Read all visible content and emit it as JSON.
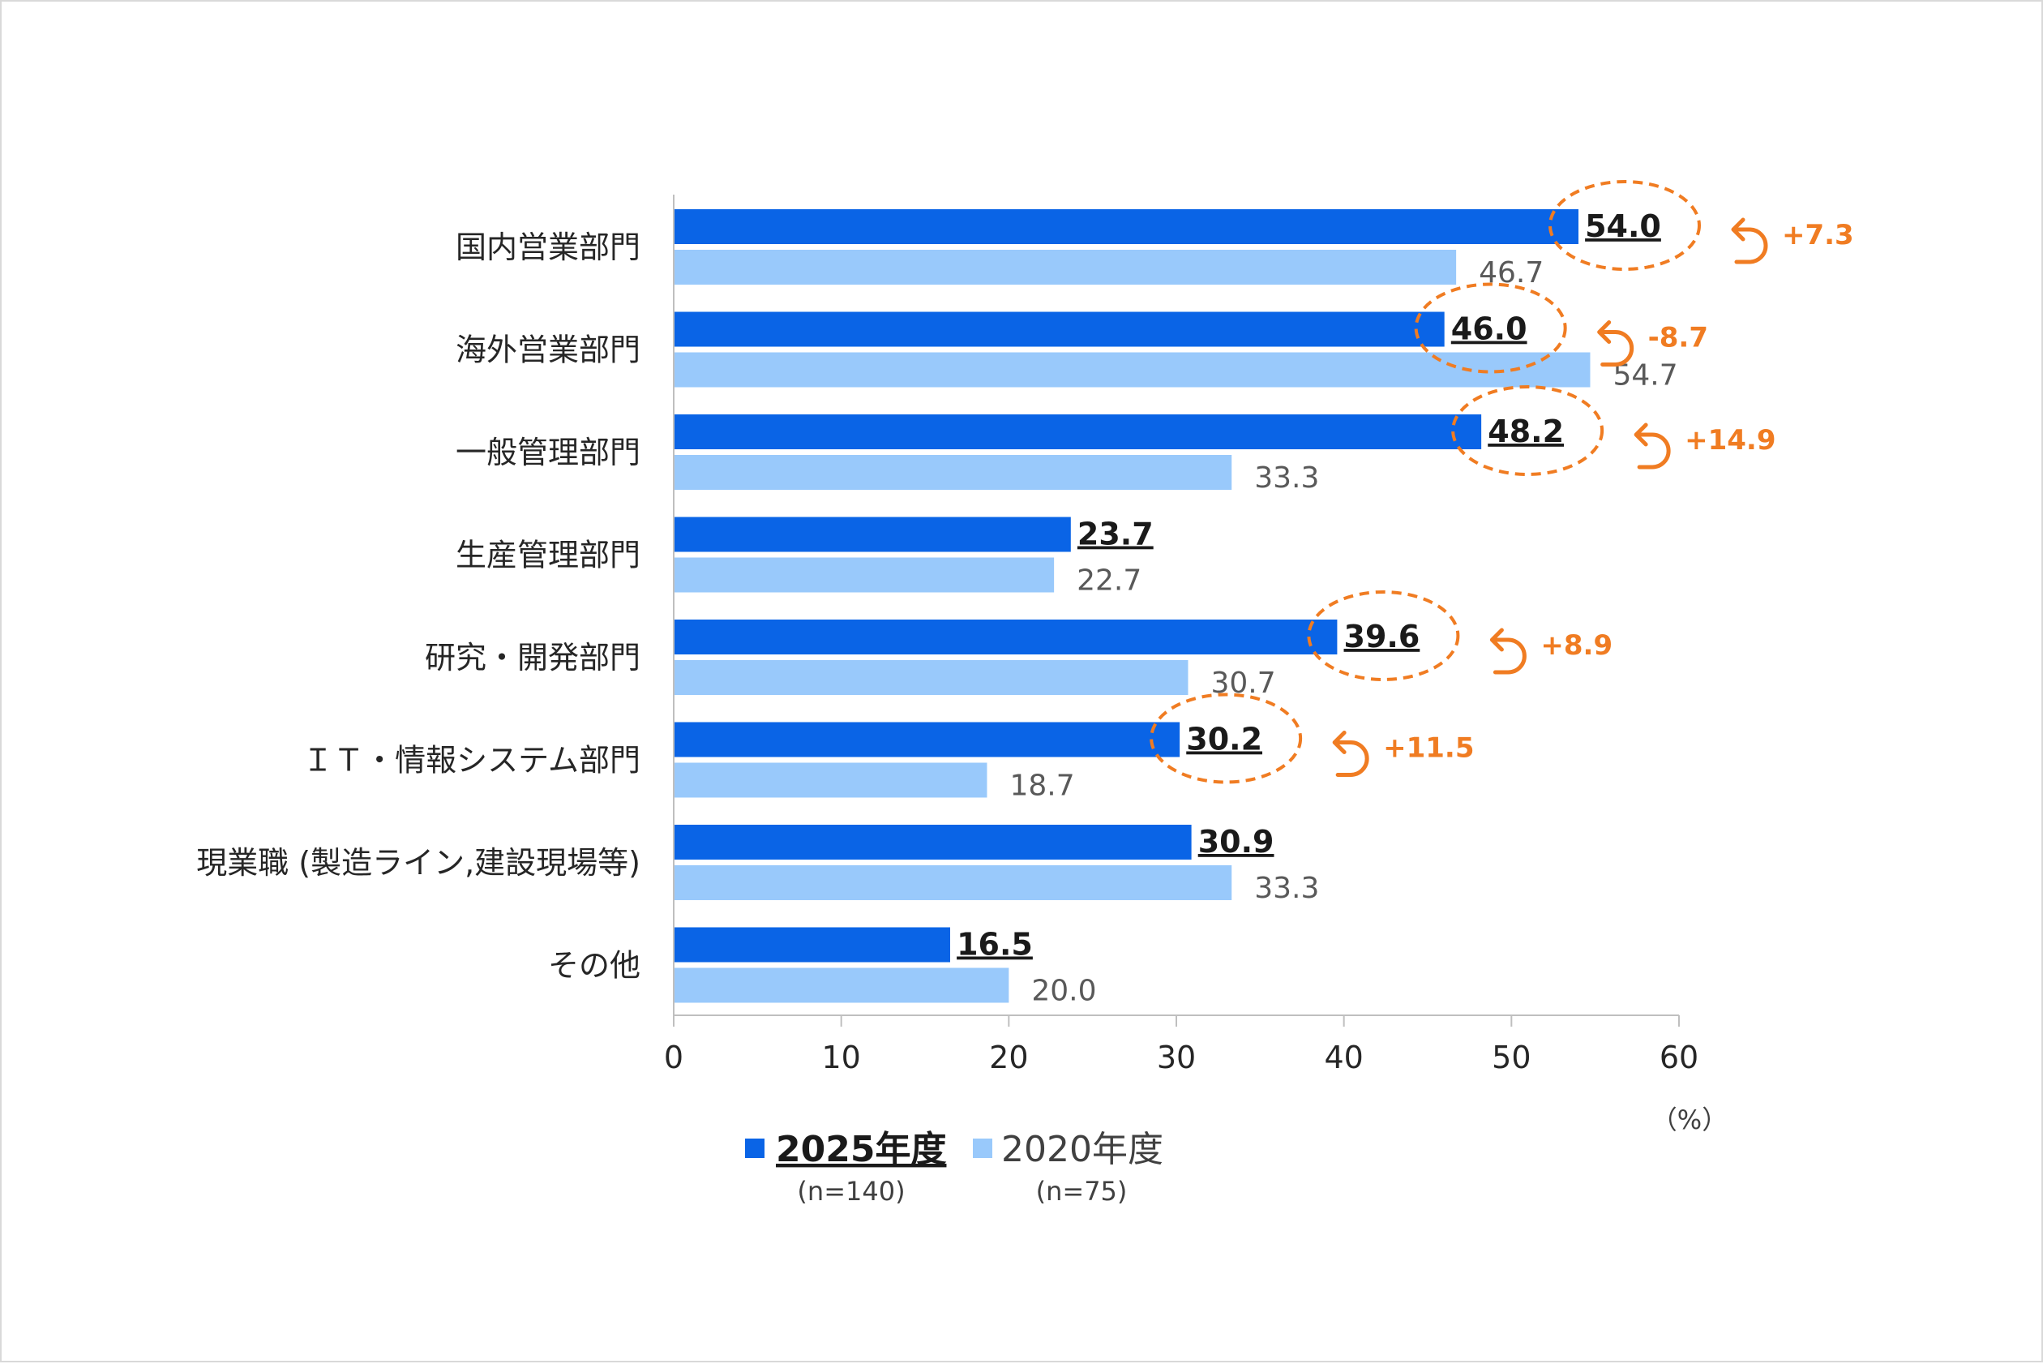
{
  "chart_data": {
    "type": "bar",
    "orientation": "horizontal",
    "categories": [
      "国内営業部門",
      "海外営業部門",
      "一般管理部門",
      "生産管理部門",
      "研究・開発部門",
      "ＩＴ・情報システム部門",
      "現業職 (製造ライン,建設現場等)",
      "その他"
    ],
    "series": [
      {
        "name": "2025年度",
        "n_label": "(n=140)",
        "color": "#0a64e6",
        "values": [
          54.0,
          46.0,
          48.2,
          23.7,
          39.6,
          30.2,
          30.9,
          16.5
        ],
        "labels": [
          "54.0",
          "46.0",
          "48.2",
          "23.7",
          "39.6",
          "30.2",
          "30.9",
          "16.5"
        ]
      },
      {
        "name": "2020年度",
        "n_label": "(n=75)",
        "color": "#99c9fb",
        "values": [
          46.7,
          54.7,
          33.3,
          22.7,
          30.7,
          18.7,
          33.3,
          20.0
        ],
        "labels": [
          "46.7",
          "54.7",
          "33.3",
          "22.7",
          "30.7",
          "18.7",
          "33.3",
          "20.0"
        ]
      }
    ],
    "highlights": [
      {
        "category_index": 0,
        "diff": "+7.3"
      },
      {
        "category_index": 1,
        "diff": "-8.7"
      },
      {
        "category_index": 2,
        "diff": "+14.9"
      },
      {
        "category_index": 4,
        "diff": "+8.9"
      },
      {
        "category_index": 5,
        "diff": "+11.5"
      }
    ],
    "highlight_color": "#f07c22",
    "xlim": [
      0,
      60
    ],
    "xticks": [
      0,
      10,
      20,
      30,
      40,
      50,
      60
    ],
    "xtick_labels": [
      "0",
      "10",
      "20",
      "30",
      "40",
      "50",
      "60"
    ],
    "unit_label": "（%）",
    "legend_position": "bottom"
  }
}
